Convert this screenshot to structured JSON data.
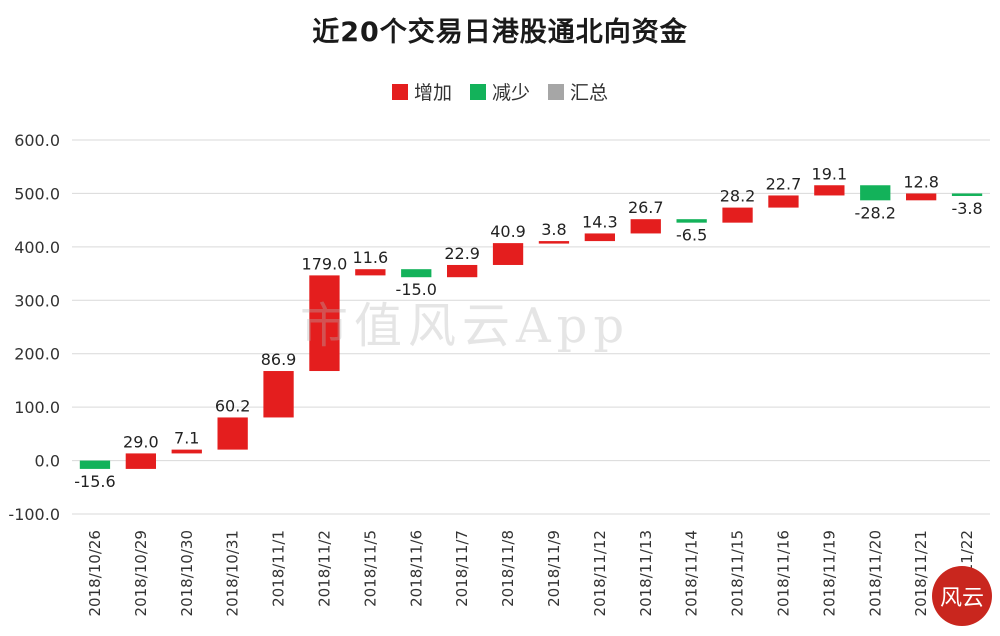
{
  "title": "近20个交易日港股通北向资金",
  "legend": {
    "increase": "增加",
    "decrease": "减少",
    "total": "汇总"
  },
  "watermark": "市值风云App",
  "colors": {
    "increase": "#e41e1e",
    "decrease": "#13b25a",
    "total": "#a6a6a6",
    "grid": "#d9d9d9",
    "axis_text": "#333333"
  },
  "chart_data": {
    "type": "bar",
    "subtype": "waterfall",
    "title": "近20个交易日港股通北向资金",
    "categories": [
      "2018/10/26",
      "2018/10/29",
      "2018/10/30",
      "2018/10/31",
      "2018/11/1",
      "2018/11/2",
      "2018/11/5",
      "2018/11/6",
      "2018/11/7",
      "2018/11/8",
      "2018/11/9",
      "2018/11/12",
      "2018/11/13",
      "2018/11/14",
      "2018/11/15",
      "2018/11/16",
      "2018/11/19",
      "2018/11/20",
      "2018/11/21",
      "2018/11/22"
    ],
    "values": [
      -15.6,
      29.0,
      7.1,
      60.2,
      86.9,
      179.0,
      11.6,
      -15.0,
      22.9,
      40.9,
      3.8,
      14.3,
      26.7,
      -6.5,
      28.2,
      22.7,
      19.1,
      -28.2,
      12.8,
      -3.8
    ],
    "labels": [
      "-15.6",
      "29.0",
      "7.1",
      "60.2",
      "86.9",
      "179.0",
      "11.6",
      "-15.0",
      "22.9",
      "40.9",
      "3.8",
      "14.3",
      "26.7",
      "-6.5",
      "28.2",
      "22.7",
      "19.1",
      "-28.2",
      "12.8",
      "-3.8"
    ],
    "ylim": [
      -100,
      600
    ],
    "yticks": [
      "-100.0",
      "0.0",
      "100.0",
      "200.0",
      "300.0",
      "400.0",
      "500.0",
      "600.0"
    ],
    "ytick_values": [
      -100,
      0,
      100,
      200,
      300,
      400,
      500,
      600
    ],
    "grid": true,
    "legend_position": "top",
    "xlabel": "",
    "ylabel": ""
  }
}
